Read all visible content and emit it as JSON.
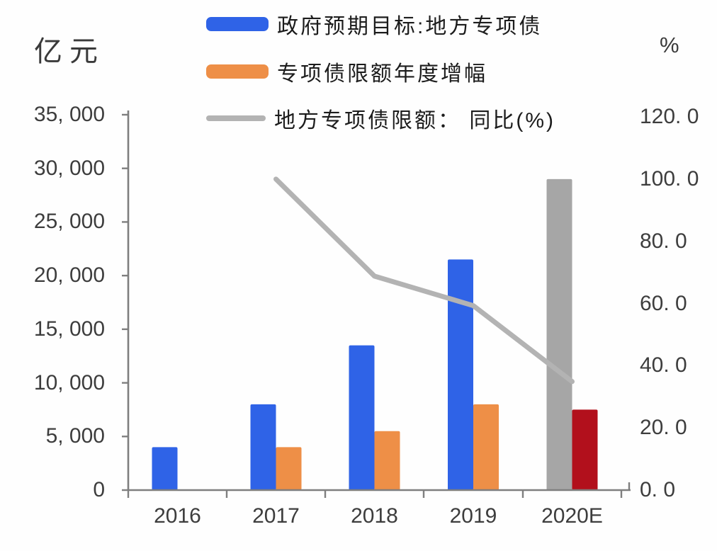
{
  "units": {
    "left": "亿元",
    "right": "%"
  },
  "legend": [
    {
      "label": "政府预期目标:地方专项债",
      "swatch": "bar",
      "color": "#2f63e7"
    },
    {
      "label": "专项债限额年度增幅",
      "swatch": "bar",
      "color": "#ee8f47"
    },
    {
      "label": "地方专项债限额： 同比(%)",
      "swatch": "line",
      "color": "#b3b3b3"
    }
  ],
  "chart_data": {
    "type": "bar+line",
    "categories": [
      "2016",
      "2017",
      "2018",
      "2019",
      "2020E"
    ],
    "series": [
      {
        "name": "政府预期目标:地方专项债",
        "type": "bar",
        "axis": "left",
        "values": [
          4000,
          8000,
          13500,
          21500,
          29000
        ],
        "colors": [
          "#2f63e7",
          "#2f63e7",
          "#2f63e7",
          "#2f63e7",
          "#a6a6a6"
        ],
        "note_colors": "2020E bar drawn in gray (estimate)"
      },
      {
        "name": "专项债限额年度增幅",
        "type": "bar",
        "axis": "left",
        "values": [
          null,
          4000,
          5500,
          8000,
          7500
        ],
        "colors": [
          null,
          "#ee8f47",
          "#ee8f47",
          "#ee8f47",
          "#b2101c"
        ],
        "note_colors": "2020E bar drawn in dark red (estimate)"
      },
      {
        "name": "地方专项债限额： 同比(%)",
        "type": "line",
        "axis": "right",
        "values": [
          null,
          100.0,
          68.8,
          59.3,
          34.9
        ],
        "color": "#b3b3b3"
      }
    ],
    "left_axis": {
      "title": "亿元",
      "min": 0,
      "max": 35000,
      "step": 5000,
      "tick_labels": [
        "0",
        "5, 000",
        "10, 000",
        "15, 000",
        "20, 000",
        "25, 000",
        "30, 000",
        "35, 000"
      ]
    },
    "right_axis": {
      "title": "%",
      "min": 0,
      "max": 120,
      "step": 20,
      "tick_labels": [
        "0. 0",
        "20. 0",
        "40. 0",
        "60. 0",
        "80. 0",
        "100. 0",
        "120. 0"
      ]
    },
    "grid": false,
    "legend_position": "top"
  },
  "colors": {
    "axis": "#7f7f7f",
    "blue_bar": "#2f63e7",
    "orange_bar": "#ee8f47",
    "gray_bar": "#a6a6a6",
    "dark_red_bar": "#b2101c",
    "line": "#b3b3b3"
  }
}
